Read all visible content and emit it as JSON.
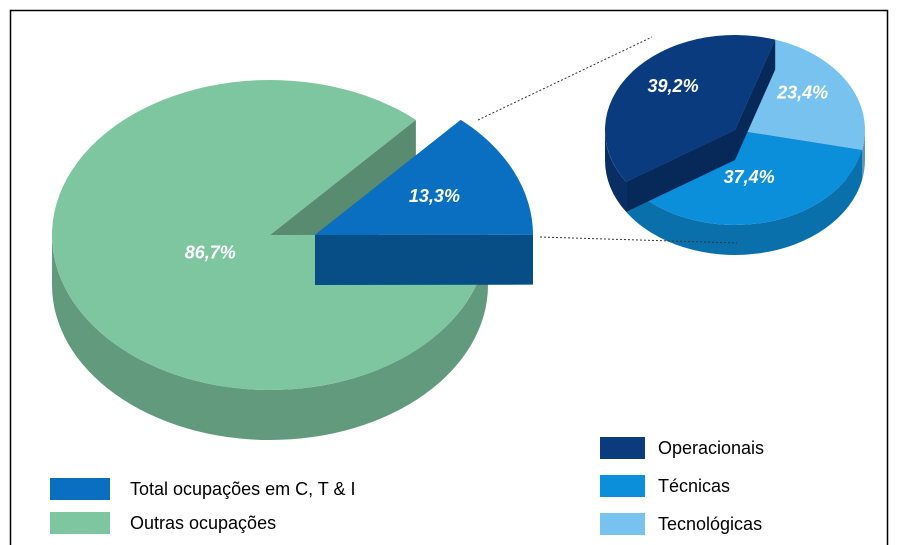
{
  "chart_data": [
    {
      "type": "pie",
      "labels": [
        "Total ocupações em C, T & I",
        "Outras ocupações"
      ],
      "values": [
        13.3,
        86.7
      ],
      "value_labels": [
        "13,3%",
        "86,7%"
      ],
      "colors": [
        "#0a6fc0",
        "#7dc6a0"
      ]
    },
    {
      "type": "pie",
      "labels": [
        "Tecnológicas",
        "Técnicas",
        "Operacionais"
      ],
      "values": [
        23.4,
        37.4,
        39.2
      ],
      "value_labels": [
        "23,4%",
        "37,4%",
        "39,2%"
      ],
      "colors": [
        "#77c2ef",
        "#0b8fdb",
        "#0a3b7f"
      ]
    }
  ]
}
